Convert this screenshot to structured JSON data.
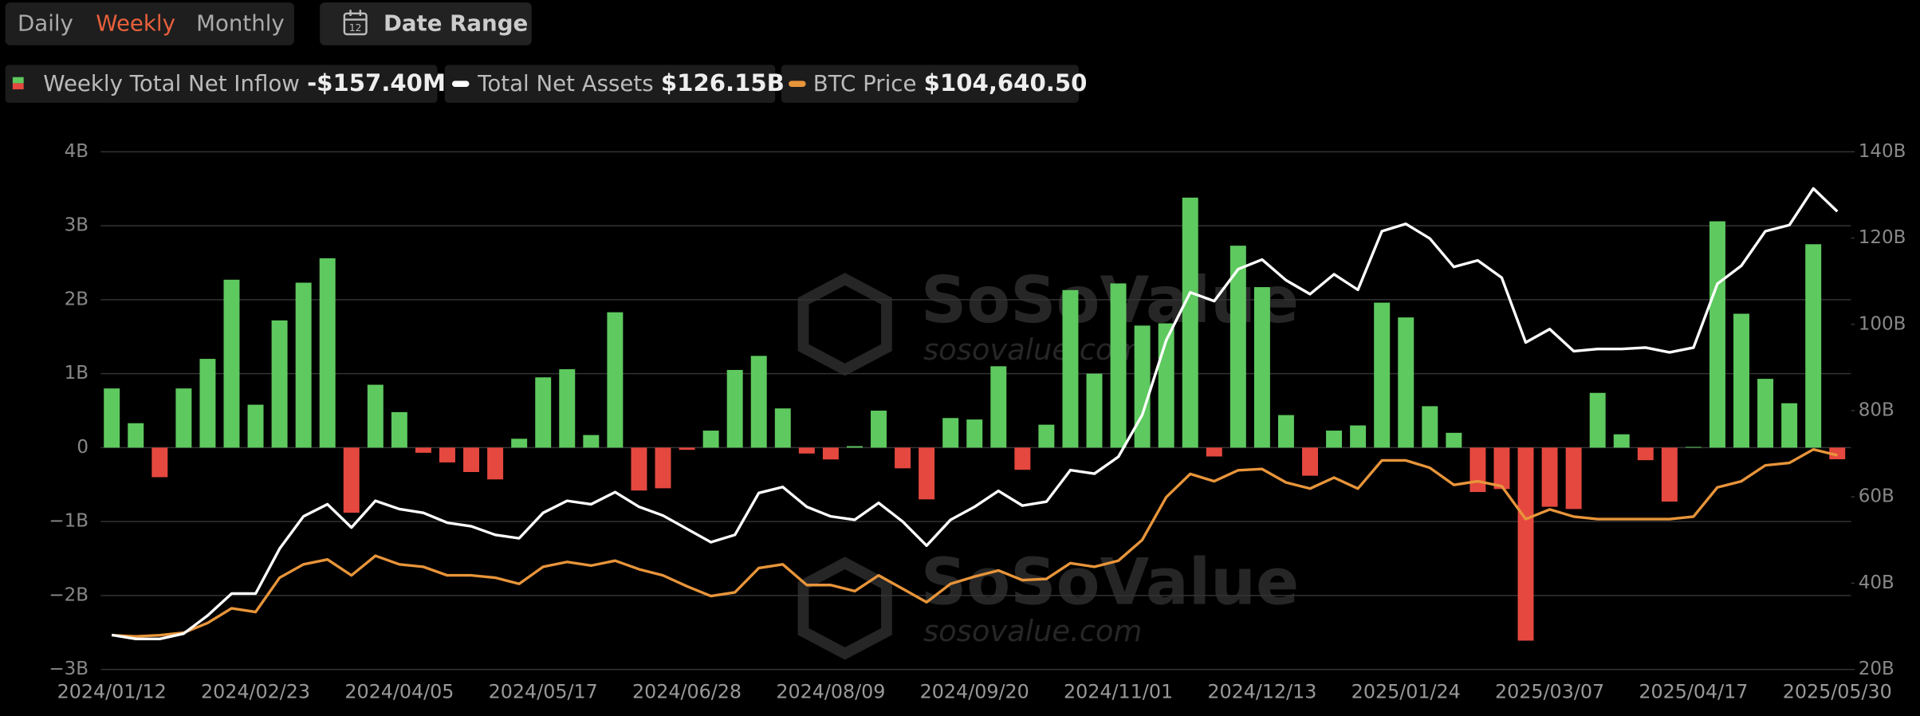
{
  "controls": {
    "periods": [
      "Daily",
      "Weekly",
      "Monthly"
    ],
    "active_period": 1,
    "date_range": "Date Range"
  },
  "chart_data": {
    "type": "bar-line",
    "watermark": {
      "brand": "SoSoValue",
      "site": "sosovalue.com"
    },
    "categories": [
      "2024/01/12",
      null,
      null,
      null,
      null,
      null,
      "2024/02/23",
      null,
      null,
      null,
      null,
      null,
      "2024/04/05",
      null,
      null,
      null,
      null,
      null,
      "2024/05/17",
      null,
      null,
      null,
      null,
      null,
      "2024/06/28",
      null,
      null,
      null,
      null,
      null,
      "2024/08/09",
      null,
      null,
      null,
      null,
      null,
      "2024/09/20",
      null,
      null,
      null,
      null,
      null,
      "2024/11/01",
      null,
      null,
      null,
      null,
      null,
      "2024/12/13",
      null,
      null,
      null,
      null,
      null,
      "2025/01/24",
      null,
      null,
      null,
      null,
      null,
      "2025/03/07",
      null,
      null,
      null,
      null,
      null,
      "2025/04/17",
      null,
      null,
      null,
      null,
      null,
      "2025/05/30"
    ],
    "series": [
      {
        "name": "Weekly Total Net Inflow",
        "legend_value": "-$157.40M",
        "type": "bar",
        "axis": "y",
        "color": "#5ec95f",
        "negative_color": "#e5483f",
        "values": [
          0.8,
          0.33,
          -0.4,
          0.8,
          1.2,
          2.27,
          0.58,
          1.72,
          2.23,
          2.56,
          -0.88,
          0.85,
          0.48,
          -0.07,
          -0.2,
          -0.33,
          -0.43,
          0.12,
          0.95,
          1.06,
          0.17,
          1.83,
          -0.58,
          -0.55,
          -0.03,
          0.23,
          1.05,
          1.24,
          0.53,
          -0.08,
          -0.16,
          0.02,
          0.5,
          -0.28,
          -0.7,
          0.4,
          0.38,
          1.1,
          -0.3,
          0.31,
          2.13,
          1.0,
          2.22,
          1.65,
          1.68,
          3.38,
          -0.12,
          2.73,
          2.17,
          0.44,
          -0.38,
          0.23,
          0.3,
          1.96,
          1.76,
          0.56,
          0.2,
          -0.6,
          -0.56,
          -2.61,
          -0.8,
          -0.83,
          0.74,
          0.18,
          -0.17,
          -0.73,
          0.01,
          3.06,
          1.81,
          0.93,
          0.6,
          2.75,
          -0.1574
        ]
      },
      {
        "name": "Total Net Assets",
        "legend_value": "$126.15B",
        "type": "line",
        "axis": "y2",
        "color": "#ffffff",
        "values": [
          28,
          27.1,
          27.1,
          28.3,
          32.5,
          37.6,
          37.6,
          48,
          55.5,
          58.3,
          52.9,
          59.1,
          57.2,
          56.3,
          54,
          53.2,
          51.2,
          50.4,
          56.3,
          59.1,
          58.3,
          61.1,
          57.7,
          55.7,
          52.6,
          49.5,
          51.2,
          60.9,
          62.3,
          57.7,
          55.5,
          54.7,
          58.6,
          54.3,
          48.7,
          54.7,
          57.7,
          61.4,
          58,
          58.9,
          66.2,
          65.4,
          69.3,
          79,
          96.3,
          107.4,
          105.4,
          112.8,
          115,
          110.2,
          107,
          111.6,
          108,
          121.6,
          123.3,
          119.9,
          113.3,
          114.8,
          110.8,
          95.8,
          98.9,
          93.8,
          94.3,
          94.3,
          94.6,
          93.5,
          94.6,
          109.4,
          113.6,
          121.6,
          123,
          131.5,
          126.15
        ]
      },
      {
        "name": "BTC Price",
        "legend_value": "$104,640.50",
        "type": "line",
        "axis": "y3",
        "color": "#e8953a",
        "values": [
          42800,
          42380,
          42800,
          43640,
          47000,
          52040,
          50780,
          62540,
          67160,
          68840,
          63380,
          70100,
          67160,
          66320,
          63380,
          63380,
          62540,
          60440,
          66320,
          68000,
          66740,
          68420,
          65480,
          63380,
          59600,
          56240,
          57500,
          65900,
          67160,
          60020,
          60020,
          57920,
          63380,
          58760,
          54140,
          60440,
          62960,
          65060,
          61700,
          62120,
          67580,
          66320,
          68420,
          75560,
          90260,
          98240,
          95720,
          99500,
          99920,
          95300,
          93200,
          96980,
          93200,
          102860,
          102860,
          100340,
          94460,
          95720,
          94040,
          82700,
          86060,
          83540,
          82700,
          82700,
          82700,
          82700,
          83540,
          93620,
          95720,
          101180,
          102020,
          106640,
          104640.5
        ]
      }
    ],
    "ylim": [
      -3,
      4
    ],
    "yticks": [
      {
        "value": -3,
        "label": "−3B"
      },
      {
        "value": -2,
        "label": "−2B"
      },
      {
        "value": -1,
        "label": "−1B"
      },
      0,
      {
        "value": 1,
        "label": "1B"
      },
      {
        "value": 2,
        "label": "2B"
      },
      {
        "value": 3,
        "label": "3B"
      },
      {
        "value": 4,
        "label": "4B"
      }
    ],
    "y2lim": [
      20,
      140
    ],
    "y2ticks": [
      {
        "value": 20,
        "label": "20B"
      },
      {
        "value": 40,
        "label": "40B"
      },
      {
        "value": 60,
        "label": "60B"
      },
      {
        "value": 80,
        "label": "80B"
      },
      {
        "value": 100,
        "label": "100B"
      },
      {
        "value": 120,
        "label": "120B"
      },
      {
        "value": 140,
        "label": "140B"
      }
    ],
    "y3lim": [
      31000,
      209000
    ],
    "grid": true
  }
}
